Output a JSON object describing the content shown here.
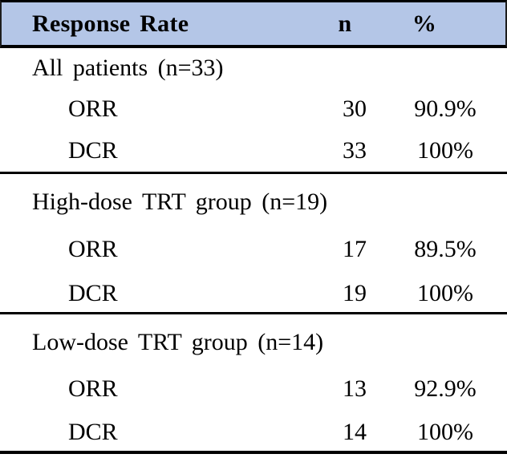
{
  "table": {
    "header": {
      "col_label": "Response Rate",
      "col_n": "n",
      "col_pct": "%"
    },
    "sections": [
      {
        "group": "All patients (n=33)",
        "rows": [
          {
            "label": "ORR",
            "n": "30",
            "pct": "90.9%"
          },
          {
            "label": "DCR",
            "n": "33",
            "pct": "100%"
          }
        ]
      },
      {
        "group": "High-dose TRT group (n=19)",
        "rows": [
          {
            "label": "ORR",
            "n": "17",
            "pct": "89.5%"
          },
          {
            "label": "DCR",
            "n": "19",
            "pct": "100%"
          }
        ]
      },
      {
        "group": "Low-dose TRT group (n=14)",
        "rows": [
          {
            "label": "ORR",
            "n": "13",
            "pct": "92.9%"
          },
          {
            "label": "DCR",
            "n": "14",
            "pct": "100%"
          }
        ]
      }
    ],
    "colors": {
      "header_bg": "#b4c6e7",
      "border": "#000000",
      "text": "#000000"
    }
  }
}
